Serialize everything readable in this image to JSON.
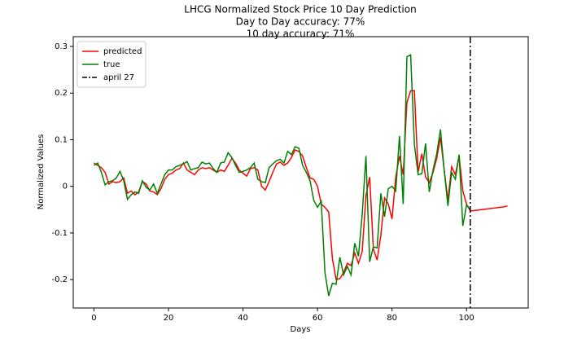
{
  "chart_data": {
    "type": "line",
    "title": [
      "LHCG Normalized Stock Price 10 Day Prediction",
      "Day to Day accuracy: 77%",
      "10 day accuracy: 71%"
    ],
    "xlabel": "Days",
    "ylabel": "Normalized Values",
    "x": [
      0,
      1,
      2,
      3,
      4,
      5,
      6,
      7,
      8,
      9,
      10,
      11,
      12,
      13,
      14,
      15,
      16,
      17,
      18,
      19,
      20,
      21,
      22,
      23,
      24,
      25,
      26,
      27,
      28,
      29,
      30,
      31,
      32,
      33,
      34,
      35,
      36,
      37,
      38,
      39,
      40,
      41,
      42,
      43,
      44,
      45,
      46,
      47,
      48,
      49,
      50,
      51,
      52,
      53,
      54,
      55,
      56,
      57,
      58,
      59,
      60,
      61,
      62,
      63,
      64,
      65,
      66,
      67,
      68,
      69,
      70,
      71,
      72,
      73,
      74,
      75,
      76,
      77,
      78,
      79,
      80,
      81,
      82,
      83,
      84,
      85,
      86,
      87,
      88,
      89,
      90,
      91,
      92,
      93,
      94,
      95,
      96,
      97,
      98,
      99,
      100,
      101,
      102,
      103,
      104,
      105,
      106,
      107,
      108,
      109,
      110,
      111
    ],
    "series": [
      {
        "name": "predicted",
        "color": "#ff0000",
        "values": [
          0.05,
          0.045,
          0.04,
          0.03,
          0.005,
          0.01,
          0.008,
          0.01,
          0.018,
          -0.015,
          -0.01,
          -0.018,
          -0.012,
          0.01,
          0.005,
          -0.01,
          -0.012,
          -0.018,
          -0.005,
          0.015,
          0.025,
          0.028,
          0.035,
          0.038,
          0.05,
          0.035,
          0.03,
          0.025,
          0.035,
          0.04,
          0.038,
          0.04,
          0.035,
          0.03,
          0.035,
          0.032,
          0.045,
          0.06,
          0.05,
          0.035,
          0.028,
          0.022,
          0.038,
          0.04,
          0.035,
          0.0,
          -0.008,
          0.01,
          0.03,
          0.048,
          0.052,
          0.045,
          0.05,
          0.062,
          0.078,
          0.075,
          0.065,
          0.04,
          0.018,
          0.015,
          0.0,
          -0.038,
          -0.045,
          -0.055,
          -0.155,
          -0.2,
          -0.198,
          -0.185,
          -0.165,
          -0.17,
          -0.143,
          -0.165,
          -0.14,
          -0.02,
          0.02,
          -0.135,
          -0.158,
          -0.105,
          -0.025,
          -0.038,
          -0.07,
          0.02,
          0.065,
          0.025,
          0.18,
          0.205,
          0.205,
          0.03,
          0.07,
          0.02,
          0.008,
          0.03,
          0.06,
          0.105,
          0.035,
          -0.03,
          0.042,
          0.025,
          0.065,
          -0.01,
          -0.038,
          -0.053,
          -0.052,
          -0.051,
          -0.05,
          -0.049,
          -0.048,
          -0.047,
          -0.046,
          -0.045,
          -0.044,
          -0.042
        ]
      },
      {
        "name": "true",
        "color": "#008000",
        "values": [
          0.045,
          0.05,
          0.03,
          0.003,
          0.01,
          0.012,
          0.018,
          0.032,
          0.012,
          -0.028,
          -0.018,
          -0.012,
          -0.015,
          0.012,
          -0.002,
          -0.008,
          0.005,
          -0.015,
          0.005,
          0.025,
          0.035,
          0.035,
          0.042,
          0.045,
          0.048,
          0.053,
          0.035,
          0.038,
          0.04,
          0.052,
          0.048,
          0.05,
          0.038,
          0.03,
          0.05,
          0.052,
          0.072,
          0.062,
          0.045,
          0.03,
          0.032,
          0.035,
          0.04,
          0.05,
          0.015,
          0.01,
          0.008,
          0.04,
          0.048,
          0.055,
          0.058,
          0.05,
          0.075,
          0.068,
          0.085,
          0.082,
          0.045,
          0.03,
          0.012,
          -0.03,
          -0.045,
          -0.032,
          -0.185,
          -0.235,
          -0.208,
          -0.21,
          -0.152,
          -0.19,
          -0.172,
          -0.19,
          -0.122,
          -0.15,
          -0.06,
          0.065,
          -0.162,
          -0.13,
          -0.132,
          -0.015,
          -0.065,
          -0.005,
          0.0,
          -0.01,
          0.108,
          -0.038,
          0.278,
          0.282,
          0.09,
          0.025,
          0.027,
          0.092,
          -0.012,
          0.035,
          0.07,
          0.122,
          0.035,
          -0.042,
          0.03,
          0.015,
          0.068,
          -0.085,
          -0.04,
          -0.05,
          null,
          null,
          null,
          null,
          null,
          null,
          null,
          null,
          null,
          null
        ]
      }
    ],
    "vline": {
      "value": 101,
      "label": "april 27",
      "color": "#000000"
    },
    "xlim": [
      -5.55,
      116.55
    ],
    "xticks": [
      0,
      20,
      40,
      60,
      80,
      100
    ],
    "ylim": [
      -0.261,
      0.321
    ],
    "yticks": [
      -0.2,
      -0.1,
      0.0,
      0.1,
      0.2,
      0.3
    ],
    "legend": "upper left",
    "grid": false
  }
}
